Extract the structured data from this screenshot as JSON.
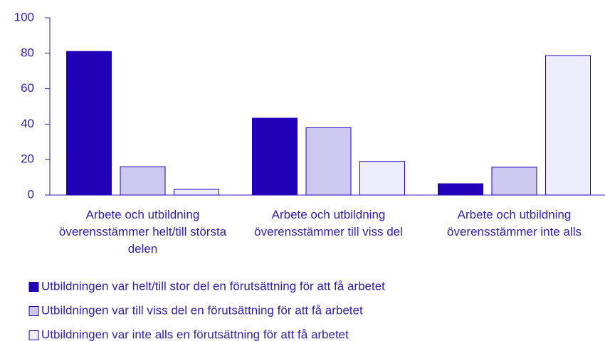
{
  "chart_data": {
    "type": "bar",
    "categories": [
      "Arbete och utbildning överensstämmer helt/till största delen",
      "Arbete och utbildning överensstämmer till viss del",
      "Arbete och utbildning överensstämmer inte alls"
    ],
    "series": [
      {
        "name": "Utbildningen var helt/till stor del en förutsättning för att få arbetet",
        "color": "#2200b8",
        "values": [
          81,
          43.4,
          6.4
        ]
      },
      {
        "name": "Utbildningen var till viss del en förutsättning för att få arbetet",
        "color": "#ccc8f0",
        "values": [
          16,
          38,
          15.7
        ]
      },
      {
        "name": "Utbildningen var inte alls en förutsättning för att få arbetet",
        "color": "#ededfc",
        "values": [
          3.2,
          19,
          78.7
        ]
      }
    ],
    "ylim": [
      0,
      100
    ],
    "yticks": [
      0,
      20,
      40,
      60,
      80,
      100
    ]
  }
}
